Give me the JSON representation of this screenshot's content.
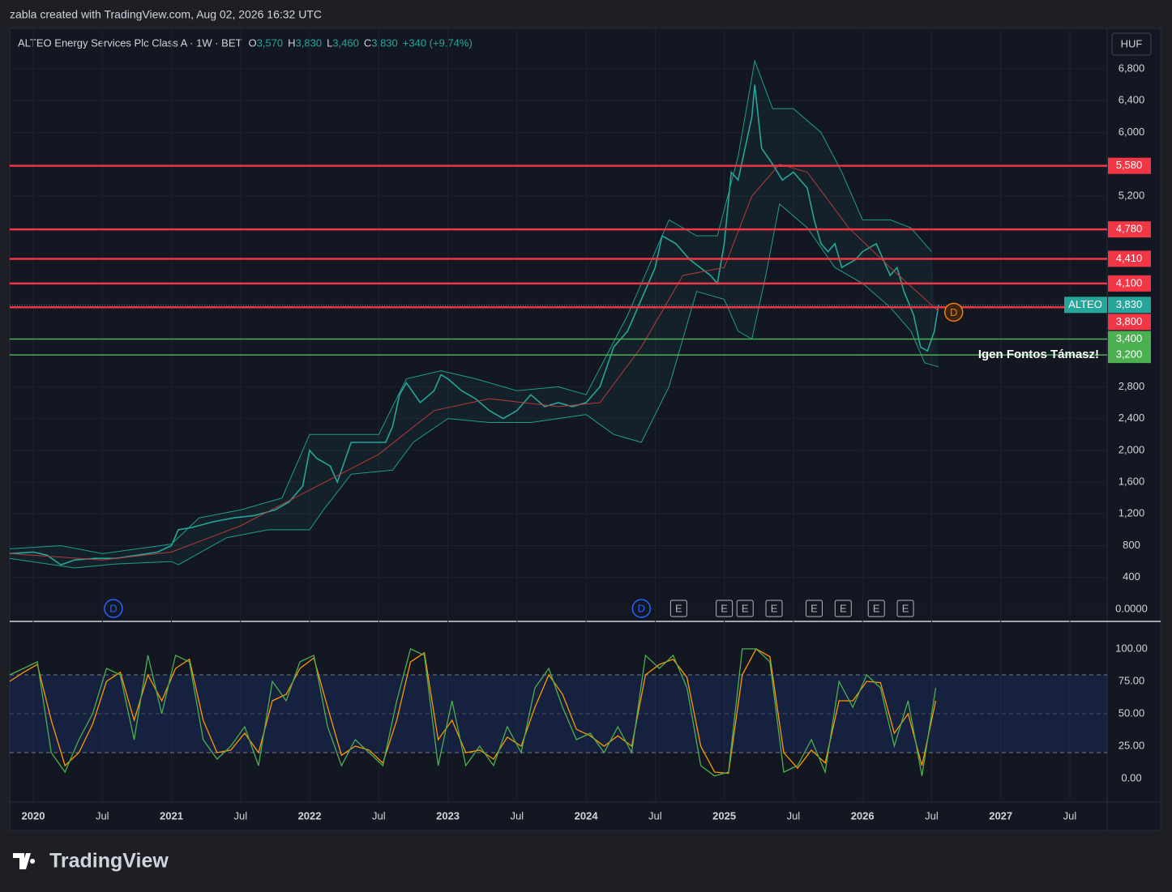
{
  "header": {
    "credit": "zabla created with TradingView.com, Aug 02, 2026 16:32 UTC"
  },
  "chart_data": [
    {
      "type": "line",
      "title": "ALTEO Energy Services Plc Class A · 1W · BET",
      "ohlc": [
        {
          "key": "O",
          "value": "3,570"
        },
        {
          "key": "H",
          "value": "3,830"
        },
        {
          "key": "L",
          "value": "3,460"
        },
        {
          "key": "C",
          "value": "3,830"
        }
      ],
      "change": "+340 (+9.74%)",
      "currency": "HUF",
      "xlim": [
        2019.83,
        2027.77
      ],
      "ylim": [
        -153,
        7310
      ],
      "xticks": [
        2020,
        {
          "value": 2020.5,
          "label": "Jul"
        },
        2021,
        {
          "value": 2021.5,
          "label": "Jul"
        },
        2022,
        {
          "value": 2022.5,
          "label": "Jul"
        },
        2023,
        {
          "value": 2023.5,
          "label": "Jul"
        },
        2024,
        {
          "value": 2024.5,
          "label": "Jul"
        },
        2025,
        {
          "value": 2025.5,
          "label": "Jul"
        },
        2026,
        {
          "value": 2026.5,
          "label": "Jul"
        },
        2027,
        {
          "value": 2027.5,
          "label": "Jul"
        }
      ],
      "yticks": [
        {
          "value": 0,
          "label": "0.0000"
        },
        400,
        800,
        {
          "value": 1200,
          "label": "1,200"
        },
        {
          "value": 1600,
          "label": "1,600"
        },
        {
          "value": 2000,
          "label": "2,000"
        },
        {
          "value": 2400,
          "label": "2,400"
        },
        {
          "value": 2800,
          "label": "2,800"
        },
        {
          "value": 5200,
          "label": "5,200"
        },
        {
          "value": 6000,
          "label": "6,000"
        },
        {
          "value": 6400,
          "label": "6,400"
        },
        {
          "value": 6800,
          "label": "6,800"
        }
      ],
      "series": [
        {
          "color": "#26a69a",
          "width": 1.6,
          "x": [
            2019.83,
            2020.0,
            2020.1,
            2020.2,
            2020.3,
            2020.45,
            2020.6,
            2020.75,
            2020.9,
            2021.0,
            2021.05,
            2021.15,
            2021.3,
            2021.45,
            2021.6,
            2021.75,
            2021.85,
            2021.95,
            2022.0,
            2022.05,
            2022.15,
            2022.2,
            2022.3,
            2022.45,
            2022.55,
            2022.6,
            2022.65,
            2022.7,
            2022.8,
            2022.9,
            2022.95,
            2023.0,
            2023.1,
            2023.2,
            2023.3,
            2023.4,
            2023.5,
            2023.6,
            2023.7,
            2023.8,
            2023.9,
            2024.0,
            2024.1,
            2024.2,
            2024.3,
            2024.4,
            2024.5,
            2024.55,
            2024.65,
            2024.75,
            2024.9,
            2024.95,
            2025.0,
            2025.05,
            2025.1,
            2025.15,
            2025.2,
            2025.22,
            2025.27,
            2025.35,
            2025.42,
            2025.5,
            2025.6,
            2025.65,
            2025.7,
            2025.75,
            2025.8,
            2025.85,
            2025.95,
            2026.0,
            2026.1,
            2026.15,
            2026.2,
            2026.25,
            2026.3,
            2026.37,
            2026.42,
            2026.47,
            2026.52,
            2026.55
          ],
          "values": [
            700,
            720,
            680,
            560,
            620,
            640,
            640,
            680,
            720,
            800,
            1000,
            1030,
            1100,
            1150,
            1180,
            1250,
            1350,
            1550,
            2000,
            1900,
            1800,
            1600,
            2100,
            2100,
            2100,
            2300,
            2700,
            2850,
            2600,
            2750,
            2950,
            2900,
            2750,
            2650,
            2500,
            2400,
            2500,
            2700,
            2550,
            2600,
            2550,
            2600,
            2800,
            3300,
            3500,
            3900,
            4300,
            4700,
            4600,
            4400,
            4200,
            4100,
            4600,
            5500,
            5400,
            5800,
            6200,
            6600,
            5800,
            5600,
            5400,
            5500,
            5300,
            4900,
            4600,
            4500,
            4600,
            4300,
            4400,
            4500,
            4600,
            4400,
            4200,
            4300,
            4000,
            3700,
            3300,
            3250,
            3500,
            3830
          ]
        },
        {
          "color": "#1f9e89",
          "width": 1,
          "x": [
            2019.83,
            2020.2,
            2020.5,
            2021.0,
            2021.2,
            2021.5,
            2021.8,
            2022.0,
            2022.2,
            2022.5,
            2022.7,
            2022.95,
            2023.2,
            2023.5,
            2023.8,
            2024.0,
            2024.3,
            2024.5,
            2024.6,
            2024.8,
            2024.95,
            2025.1,
            2025.22,
            2025.35,
            2025.5,
            2025.7,
            2025.85,
            2026.0,
            2026.2,
            2026.35,
            2026.5
          ],
          "values": [
            760,
            800,
            700,
            820,
            1150,
            1250,
            1400,
            2200,
            2200,
            2200,
            2900,
            3000,
            2900,
            2750,
            2800,
            2700,
            3700,
            4500,
            4900,
            4700,
            4700,
            5700,
            6900,
            6300,
            6300,
            6000,
            5500,
            4900,
            4900,
            4800,
            4500
          ]
        },
        {
          "color": "#1f9e89",
          "width": 1,
          "x": [
            2019.83,
            2020.3,
            2020.6,
            2021.0,
            2021.05,
            2021.4,
            2021.7,
            2022.0,
            2022.1,
            2022.3,
            2022.6,
            2022.75,
            2023.0,
            2023.3,
            2023.6,
            2024.0,
            2024.2,
            2024.4,
            2024.6,
            2024.8,
            2025.0,
            2025.1,
            2025.2,
            2025.3,
            2025.4,
            2025.6,
            2025.8,
            2026.0,
            2026.2,
            2026.35,
            2026.45,
            2026.55
          ],
          "values": [
            640,
            520,
            570,
            600,
            560,
            900,
            1000,
            1000,
            1250,
            1700,
            1750,
            2100,
            2400,
            2350,
            2350,
            2450,
            2200,
            2100,
            2800,
            4000,
            3900,
            3500,
            3400,
            4200,
            5100,
            4800,
            4300,
            4100,
            3800,
            3500,
            3100,
            3050
          ]
        },
        {
          "color": "#b83a3a",
          "width": 1,
          "x": [
            2019.83,
            2020.5,
            2021.0,
            2021.5,
            2022.0,
            2022.5,
            2022.9,
            2023.3,
            2023.8,
            2024.1,
            2024.4,
            2024.7,
            2025.0,
            2025.2,
            2025.4,
            2025.6,
            2025.9,
            2026.2,
            2026.55
          ],
          "values": [
            700,
            620,
            720,
            1050,
            1500,
            1950,
            2500,
            2650,
            2550,
            2600,
            3300,
            4200,
            4300,
            5200,
            5600,
            5500,
            4800,
            4300,
            3750
          ]
        }
      ],
      "levels": [
        {
          "value": 5580,
          "label": "5,580",
          "color": "#f23645"
        },
        {
          "value": 4780,
          "label": "4,780",
          "color": "#f23645"
        },
        {
          "value": 4410,
          "label": "4,410",
          "color": "#f23645"
        },
        {
          "value": 4100,
          "label": "4,100",
          "color": "#f23645"
        },
        {
          "value": 3800,
          "label": "3,800",
          "color": "#f23645"
        },
        {
          "value": 3400,
          "label": "3,400",
          "color": "#4caf50"
        },
        {
          "value": 3200,
          "label": "3,200",
          "color": "#4caf50",
          "note": "Igen Fontos Támasz!"
        }
      ],
      "last_price": {
        "name": "ALTEO",
        "value": 3830,
        "label": "3,830",
        "color": "#26a69a"
      },
      "events": [
        {
          "x": 2020.58,
          "label": "D",
          "color": "#2962ff"
        },
        {
          "x": 2024.4,
          "label": "D",
          "color": "#2962ff"
        },
        {
          "x": 2024.67,
          "label": "E",
          "color": "#b2b5be"
        },
        {
          "x": 2025.0,
          "label": "E",
          "color": "#b2b5be"
        },
        {
          "x": 2025.15,
          "label": "E",
          "color": "#b2b5be"
        },
        {
          "x": 2025.36,
          "label": "E",
          "color": "#b2b5be"
        },
        {
          "x": 2025.65,
          "label": "E",
          "color": "#b2b5be"
        },
        {
          "x": 2025.86,
          "label": "E",
          "color": "#b2b5be"
        },
        {
          "x": 2026.1,
          "label": "E",
          "color": "#b2b5be"
        },
        {
          "x": 2026.31,
          "label": "E",
          "color": "#b2b5be"
        },
        {
          "x": 2026.66,
          "label": "D",
          "color": "#f57c00"
        }
      ]
    },
    {
      "type": "line",
      "ylim": [
        -18.1,
        121.2
      ],
      "yticks": [
        {
          "value": 0,
          "label": "0.00"
        },
        {
          "value": 25,
          "label": "25.00"
        },
        {
          "value": 50,
          "label": "50.00"
        },
        {
          "value": 75,
          "label": "75.00"
        },
        {
          "value": 100,
          "label": "100.00"
        }
      ],
      "band": [
        20,
        80
      ],
      "midline": 50,
      "x": [
        2019.83,
        2019.93,
        2020.03,
        2020.13,
        2020.23,
        2020.33,
        2020.43,
        2020.53,
        2020.63,
        2020.73,
        2020.83,
        2020.93,
        2021.03,
        2021.13,
        2021.23,
        2021.33,
        2021.43,
        2021.53,
        2021.63,
        2021.73,
        2021.83,
        2021.93,
        2022.03,
        2022.13,
        2022.23,
        2022.33,
        2022.43,
        2022.53,
        2022.63,
        2022.73,
        2022.83,
        2022.93,
        2023.03,
        2023.13,
        2023.23,
        2023.33,
        2023.43,
        2023.53,
        2023.63,
        2023.73,
        2023.83,
        2023.93,
        2024.03,
        2024.13,
        2024.23,
        2024.33,
        2024.43,
        2024.53,
        2024.63,
        2024.73,
        2024.83,
        2024.93,
        2025.03,
        2025.13,
        2025.23,
        2025.33,
        2025.43,
        2025.53,
        2025.63,
        2025.73,
        2025.83,
        2025.93,
        2026.03,
        2026.13,
        2026.23,
        2026.33,
        2026.43,
        2026.53
      ],
      "series": [
        {
          "color": "#4caf50",
          "values": [
            80,
            85,
            90,
            20,
            5,
            30,
            50,
            85,
            80,
            30,
            95,
            50,
            95,
            90,
            30,
            15,
            25,
            40,
            10,
            75,
            60,
            90,
            95,
            40,
            10,
            30,
            20,
            10,
            60,
            100,
            95,
            10,
            60,
            10,
            25,
            10,
            40,
            20,
            70,
            85,
            55,
            30,
            35,
            20,
            40,
            20,
            95,
            85,
            95,
            70,
            10,
            2,
            5,
            100,
            100,
            90,
            5,
            10,
            30,
            5,
            75,
            55,
            80,
            70,
            25,
            60,
            2,
            70
          ]
        },
        {
          "color": "#ff9800",
          "values": [
            75,
            82,
            88,
            45,
            10,
            20,
            42,
            75,
            82,
            45,
            80,
            60,
            85,
            92,
            45,
            20,
            22,
            35,
            20,
            60,
            65,
            85,
            93,
            55,
            18,
            25,
            22,
            12,
            45,
            90,
            97,
            30,
            45,
            20,
            22,
            15,
            32,
            25,
            55,
            80,
            65,
            38,
            33,
            25,
            33,
            25,
            80,
            88,
            92,
            78,
            25,
            5,
            4,
            80,
            100,
            94,
            20,
            8,
            22,
            12,
            60,
            60,
            75,
            74,
            35,
            50,
            10,
            60
          ]
        }
      ]
    }
  ],
  "footer": {
    "logo": "TradingView"
  }
}
